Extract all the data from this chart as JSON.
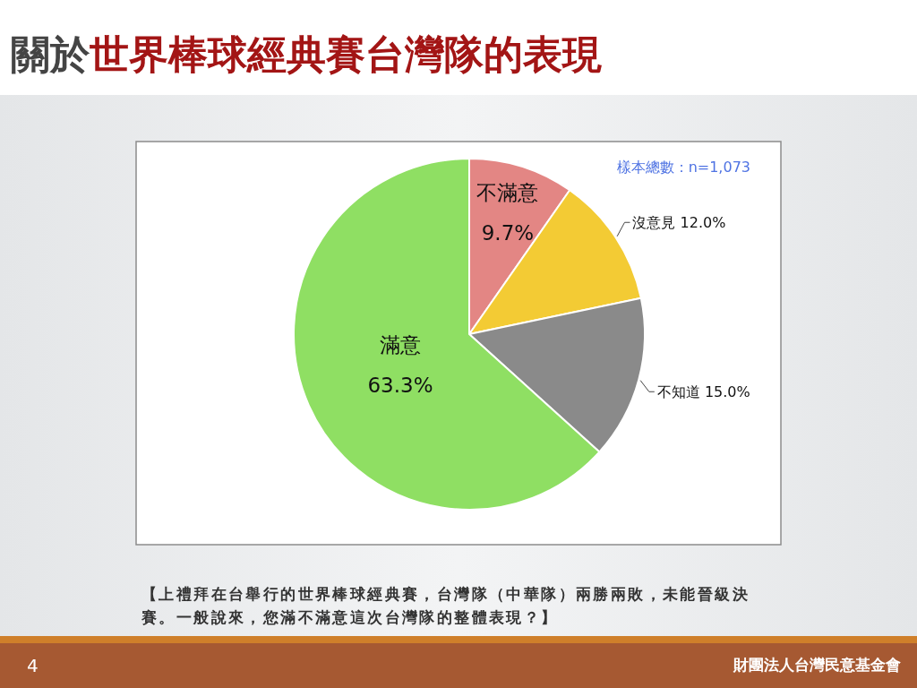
{
  "chart_data": {
    "type": "pie",
    "title": "關於世界棒球經典賽台灣隊的表現",
    "categories": [
      "不滿意",
      "沒意見",
      "不知道",
      "滿意"
    ],
    "values": [
      9.7,
      12.0,
      15.0,
      63.3
    ],
    "colors": [
      "#e38684",
      "#f3cb34",
      "#8a8a8a",
      "#8fdf63"
    ],
    "value_labels": [
      "9.7%",
      "12.0%",
      "15.0%",
      "63.3%"
    ],
    "annotations": [
      "樣本總數：n=1,073",
      "【上禮拜在台舉行的世界棒球經典賽，台灣隊（中華隊）兩勝兩敗，未能晉級決賽。一般說來，您滿不滿意這次台灣隊的整體表現？】",
      "4",
      "財團法人台灣民意基金會"
    ]
  }
}
